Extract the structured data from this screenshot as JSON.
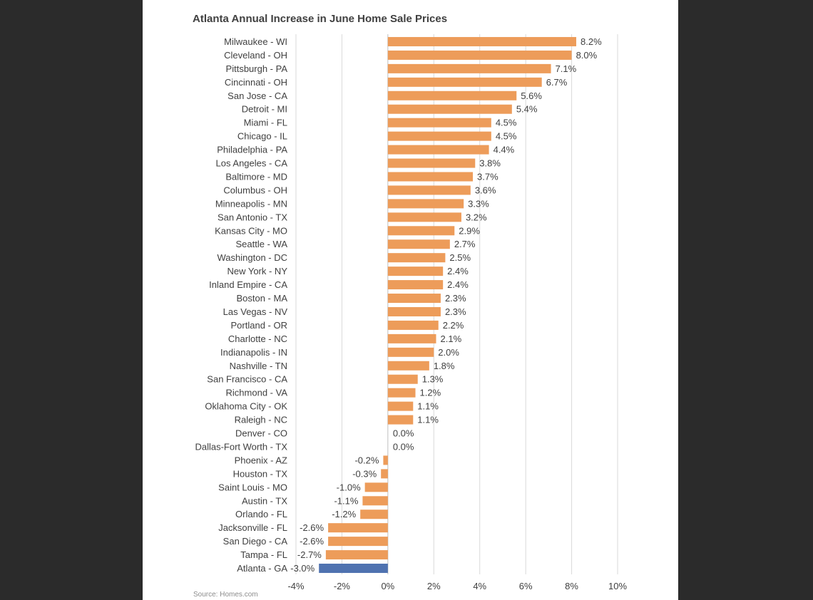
{
  "chart_data": {
    "type": "bar",
    "orientation": "horizontal",
    "title": "Atlanta Annual Increase in June Home Sale Prices",
    "source": "Source: Homes.com",
    "xlim": [
      -4,
      10
    ],
    "ticks": [
      -4,
      -2,
      0,
      2,
      4,
      6,
      8,
      10
    ],
    "tick_labels": [
      "-4%",
      "-2%",
      "0%",
      "2%",
      "4%",
      "6%",
      "8%",
      "10%"
    ],
    "grid": true,
    "colors": {
      "default": "#ED9C5A",
      "highlight": "#4F72B0"
    },
    "highlight_category": "Atlanta - GA",
    "categories": [
      "Milwaukee - WI",
      "Cleveland - OH",
      "Pittsburgh - PA",
      "Cincinnati - OH",
      "San Jose - CA",
      "Detroit - MI",
      "Miami - FL",
      "Chicago - IL",
      "Philadelphia - PA",
      "Los Angeles - CA",
      "Baltimore - MD",
      "Columbus - OH",
      "Minneapolis - MN",
      "San Antonio - TX",
      "Kansas City - MO",
      "Seattle - WA",
      "Washington - DC",
      "New York - NY",
      "Inland Empire - CA",
      "Boston - MA",
      "Las Vegas - NV",
      "Portland - OR",
      "Charlotte - NC",
      "Indianapolis - IN",
      "Nashville - TN",
      "San Francisco - CA",
      "Richmond - VA",
      "Oklahoma City - OK",
      "Raleigh - NC",
      "Denver - CO",
      "Dallas-Fort Worth - TX",
      "Phoenix - AZ",
      "Houston - TX",
      "Saint Louis - MO",
      "Austin - TX",
      "Orlando - FL",
      "Jacksonville - FL",
      "San Diego - CA",
      "Tampa - FL",
      "Atlanta - GA"
    ],
    "values": [
      8.2,
      8.0,
      7.1,
      6.7,
      5.6,
      5.4,
      4.5,
      4.5,
      4.4,
      3.8,
      3.7,
      3.6,
      3.3,
      3.2,
      2.9,
      2.7,
      2.5,
      2.4,
      2.4,
      2.3,
      2.3,
      2.2,
      2.1,
      2.0,
      1.8,
      1.3,
      1.2,
      1.1,
      1.1,
      0.0,
      0.0,
      -0.2,
      -0.3,
      -1.0,
      -1.1,
      -1.2,
      -2.6,
      -2.6,
      -2.7,
      -3.0
    ],
    "value_labels": [
      "8.2%",
      "8.0%",
      "7.1%",
      "6.7%",
      "5.6%",
      "5.4%",
      "4.5%",
      "4.5%",
      "4.4%",
      "3.8%",
      "3.7%",
      "3.6%",
      "3.3%",
      "3.2%",
      "2.9%",
      "2.7%",
      "2.5%",
      "2.4%",
      "2.4%",
      "2.3%",
      "2.3%",
      "2.2%",
      "2.1%",
      "2.0%",
      "1.8%",
      "1.3%",
      "1.2%",
      "1.1%",
      "1.1%",
      "0.0%",
      "0.0%",
      "-0.2%",
      "-0.3%",
      "-1.0%",
      "-1.1%",
      "-1.2%",
      "-2.6%",
      "-2.6%",
      "-2.7%",
      "-3.0%"
    ]
  }
}
